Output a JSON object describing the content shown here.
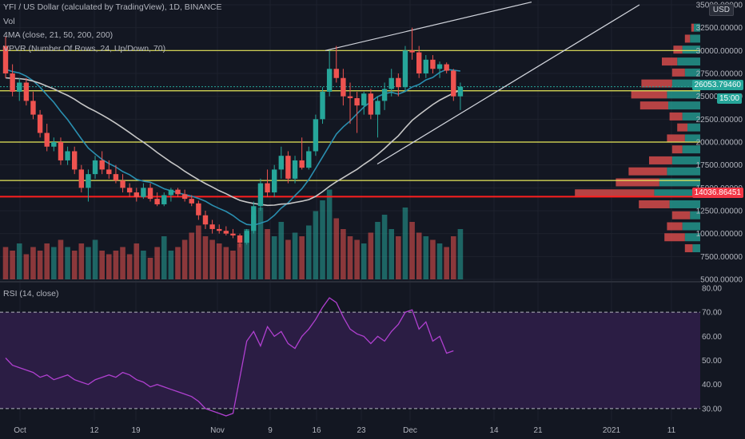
{
  "header": {
    "symbol_line": "YFI / US Dollar (calculated by TradingView), 1D, BINANCE",
    "vol_label": "Vol",
    "ma_label": "4MA (close, 21, 50, 200, 200)",
    "vpvr_label": "VPVR (Number Of Rows, 24, Up/Down, 70)",
    "rsi_label": "RSI (14, close)"
  },
  "tags": {
    "currency": "USD",
    "last_price": "26053.79460",
    "countdown": "15:00",
    "red_line_price": "14036.86451"
  },
  "colors": {
    "background": "#131722",
    "up": "#26a69a",
    "down": "#ef5350",
    "ma_fast": "#2a8fb0",
    "ma_slow": "#c7c7c7",
    "level_line": "#e8e85a",
    "support_line": "#ff1f1f",
    "rsi_line": "#b040d0",
    "rsi_band": "#2b1d44"
  },
  "chart_data": {
    "type": "candlestick",
    "title": "YFI / US Dollar (calculated by TradingView), 1D, BINANCE",
    "price_axis_ticks": [
      "35000.00000",
      "32500.00000",
      "30000.00000",
      "27500.00000",
      "25000.00000",
      "22500.00000",
      "20000.00000",
      "17500.00000",
      "15000.00000",
      "12500.00000",
      "10000.00000",
      "7500.00000",
      "5000.00000"
    ],
    "price_range": [
      5000,
      35000
    ],
    "x_axis_ticks": [
      "Oct",
      "12",
      "19",
      "Nov",
      "9",
      "16",
      "23",
      "Dec",
      "14",
      "21",
      "2021",
      "11"
    ],
    "candles": [
      {
        "o": 30500,
        "h": 31500,
        "l": 27000,
        "c": 27500
      },
      {
        "o": 27500,
        "h": 28500,
        "l": 25000,
        "c": 25500
      },
      {
        "o": 25500,
        "h": 27000,
        "l": 24500,
        "c": 26500
      },
      {
        "o": 26500,
        "h": 27000,
        "l": 24000,
        "c": 24500
      },
      {
        "o": 24500,
        "h": 25500,
        "l": 22500,
        "c": 23000
      },
      {
        "o": 23000,
        "h": 23500,
        "l": 20500,
        "c": 21000
      },
      {
        "o": 21000,
        "h": 22000,
        "l": 19000,
        "c": 19500
      },
      {
        "o": 19500,
        "h": 20500,
        "l": 19000,
        "c": 20000
      },
      {
        "o": 20000,
        "h": 20500,
        "l": 17500,
        "c": 18000
      },
      {
        "o": 18000,
        "h": 19500,
        "l": 17500,
        "c": 19000
      },
      {
        "o": 19000,
        "h": 19500,
        "l": 16500,
        "c": 17000
      },
      {
        "o": 17000,
        "h": 17500,
        "l": 14500,
        "c": 15000
      },
      {
        "o": 15000,
        "h": 17000,
        "l": 13500,
        "c": 16500
      },
      {
        "o": 16500,
        "h": 18500,
        "l": 16000,
        "c": 18000
      },
      {
        "o": 18000,
        "h": 19000,
        "l": 16500,
        "c": 17000
      },
      {
        "o": 17000,
        "h": 18000,
        "l": 16000,
        "c": 16500
      },
      {
        "o": 16500,
        "h": 17500,
        "l": 15500,
        "c": 15800
      },
      {
        "o": 15800,
        "h": 16500,
        "l": 14500,
        "c": 15000
      },
      {
        "o": 15000,
        "h": 15500,
        "l": 14000,
        "c": 14500
      },
      {
        "o": 14500,
        "h": 15000,
        "l": 13500,
        "c": 14000
      },
      {
        "o": 14000,
        "h": 15500,
        "l": 13800,
        "c": 15000
      },
      {
        "o": 15000,
        "h": 15500,
        "l": 13500,
        "c": 13800
      },
      {
        "o": 13800,
        "h": 14500,
        "l": 13000,
        "c": 13200
      },
      {
        "o": 13200,
        "h": 14500,
        "l": 13000,
        "c": 14200
      },
      {
        "o": 14200,
        "h": 15000,
        "l": 13500,
        "c": 14800
      },
      {
        "o": 14800,
        "h": 15000,
        "l": 14000,
        "c": 14300
      },
      {
        "o": 14300,
        "h": 14800,
        "l": 13500,
        "c": 13800
      },
      {
        "o": 13800,
        "h": 14200,
        "l": 13000,
        "c": 13300
      },
      {
        "o": 13300,
        "h": 13600,
        "l": 11500,
        "c": 12000
      },
      {
        "o": 12000,
        "h": 12500,
        "l": 10500,
        "c": 11000
      },
      {
        "o": 11000,
        "h": 11500,
        "l": 10000,
        "c": 10500
      },
      {
        "o": 10500,
        "h": 11000,
        "l": 10000,
        "c": 10300
      },
      {
        "o": 10300,
        "h": 10800,
        "l": 9800,
        "c": 10000
      },
      {
        "o": 10000,
        "h": 10500,
        "l": 9500,
        "c": 9800
      },
      {
        "o": 9800,
        "h": 10000,
        "l": 8500,
        "c": 9000
      },
      {
        "o": 9000,
        "h": 10500,
        "l": 8800,
        "c": 10300
      },
      {
        "o": 10300,
        "h": 13500,
        "l": 10000,
        "c": 13000
      },
      {
        "o": 13000,
        "h": 16000,
        "l": 12500,
        "c": 15500
      },
      {
        "o": 15500,
        "h": 17000,
        "l": 14000,
        "c": 14500
      },
      {
        "o": 14500,
        "h": 17500,
        "l": 14000,
        "c": 17000
      },
      {
        "o": 17000,
        "h": 19500,
        "l": 16000,
        "c": 18500
      },
      {
        "o": 18500,
        "h": 19000,
        "l": 15500,
        "c": 16000
      },
      {
        "o": 16000,
        "h": 18500,
        "l": 15500,
        "c": 18000
      },
      {
        "o": 18000,
        "h": 20500,
        "l": 17000,
        "c": 17200
      },
      {
        "o": 17200,
        "h": 19500,
        "l": 17000,
        "c": 19000
      },
      {
        "o": 19000,
        "h": 23000,
        "l": 18500,
        "c": 22500
      },
      {
        "o": 22500,
        "h": 26000,
        "l": 22000,
        "c": 25500
      },
      {
        "o": 25500,
        "h": 30000,
        "l": 25000,
        "c": 28000
      },
      {
        "o": 28000,
        "h": 30500,
        "l": 26500,
        "c": 27000
      },
      {
        "o": 27000,
        "h": 28000,
        "l": 24000,
        "c": 25000
      },
      {
        "o": 25000,
        "h": 26500,
        "l": 22000,
        "c": 24800
      },
      {
        "o": 24800,
        "h": 25500,
        "l": 21000,
        "c": 24000
      },
      {
        "o": 24000,
        "h": 25500,
        "l": 23000,
        "c": 25300
      },
      {
        "o": 25300,
        "h": 25800,
        "l": 22500,
        "c": 23000
      },
      {
        "o": 23000,
        "h": 25000,
        "l": 20500,
        "c": 24500
      },
      {
        "o": 24500,
        "h": 26500,
        "l": 23500,
        "c": 25800
      },
      {
        "o": 25800,
        "h": 28000,
        "l": 25000,
        "c": 27000
      },
      {
        "o": 27000,
        "h": 27500,
        "l": 25000,
        "c": 26000
      },
      {
        "o": 26000,
        "h": 30500,
        "l": 25500,
        "c": 30000
      },
      {
        "o": 30000,
        "h": 32500,
        "l": 29000,
        "c": 29800
      },
      {
        "o": 29800,
        "h": 30500,
        "l": 27000,
        "c": 27500
      },
      {
        "o": 27500,
        "h": 29500,
        "l": 27000,
        "c": 29000
      },
      {
        "o": 29000,
        "h": 29500,
        "l": 27500,
        "c": 28000
      },
      {
        "o": 28000,
        "h": 28800,
        "l": 27000,
        "c": 28500
      },
      {
        "o": 28500,
        "h": 28700,
        "l": 27500,
        "c": 27800
      },
      {
        "o": 27800,
        "h": 28000,
        "l": 24500,
        "c": 25000
      },
      {
        "o": 25000,
        "h": 26500,
        "l": 23500,
        "c": 26050
      }
    ],
    "volume": [
      9,
      8,
      10,
      7,
      9,
      8,
      10,
      9,
      11,
      9,
      8,
      10,
      9,
      11,
      8,
      7,
      8,
      9,
      7,
      10,
      8,
      6,
      9,
      12,
      8,
      9,
      11,
      13,
      15,
      12,
      11,
      10,
      9,
      8,
      10,
      14,
      18,
      20,
      14,
      12,
      16,
      11,
      13,
      12,
      15,
      19,
      22,
      25,
      17,
      14,
      12,
      11,
      10,
      13,
      16,
      18,
      14,
      12,
      20,
      16,
      13,
      12,
      11,
      10,
      9,
      12,
      14
    ],
    "ma_levels": {
      "horizontal_levels": [
        30000,
        25600,
        20000,
        15800
      ],
      "support_level": 14036.86451
    },
    "rsi": {
      "title": "RSI (14, close)",
      "range": [
        25,
        80
      ],
      "ticks": [
        "80.00",
        "70.00",
        "60.00",
        "50.00",
        "40.00",
        "30.00"
      ],
      "bands": [
        30,
        70
      ],
      "values": [
        51,
        48,
        47,
        46,
        45,
        43,
        44,
        42,
        43,
        44,
        42,
        41,
        40,
        42,
        43,
        44,
        43,
        45,
        44,
        42,
        41,
        39,
        40,
        39,
        38,
        37,
        36,
        35,
        33,
        30,
        29,
        28,
        27,
        28,
        43,
        58,
        62,
        56,
        64,
        60,
        62,
        57,
        55,
        60,
        63,
        67,
        72,
        76,
        74,
        68,
        63,
        61,
        60,
        57,
        60,
        58,
        62,
        65,
        70,
        71,
        63,
        66,
        58,
        60,
        53,
        54
      ],
      "x_end_index": 66
    },
    "volume_profile_rows": [
      {
        "price": 32500,
        "up": 5,
        "down": 2
      },
      {
        "price": 31300,
        "up": 8,
        "down": 4
      },
      {
        "price": 30100,
        "up": 14,
        "down": 7
      },
      {
        "price": 28800,
        "up": 18,
        "down": 12
      },
      {
        "price": 27600,
        "up": 12,
        "down": 10
      },
      {
        "price": 26400,
        "up": 22,
        "down": 24
      },
      {
        "price": 25200,
        "up": 26,
        "down": 28
      },
      {
        "price": 24000,
        "up": 25,
        "down": 22
      },
      {
        "price": 22800,
        "up": 14,
        "down": 10
      },
      {
        "price": 21600,
        "up": 10,
        "down": 8
      },
      {
        "price": 20400,
        "up": 12,
        "down": 14
      },
      {
        "price": 19200,
        "up": 14,
        "down": 8
      },
      {
        "price": 18000,
        "up": 22,
        "down": 18
      },
      {
        "price": 16800,
        "up": 26,
        "down": 30
      },
      {
        "price": 15600,
        "up": 32,
        "down": 34
      },
      {
        "price": 14400,
        "up": 36,
        "down": 62
      },
      {
        "price": 13200,
        "up": 24,
        "down": 24
      },
      {
        "price": 12000,
        "up": 8,
        "down": 14
      },
      {
        "price": 10800,
        "up": 14,
        "down": 12
      },
      {
        "price": 9600,
        "up": 12,
        "down": 16
      },
      {
        "price": 8400,
        "up": 6,
        "down": 6
      }
    ]
  }
}
